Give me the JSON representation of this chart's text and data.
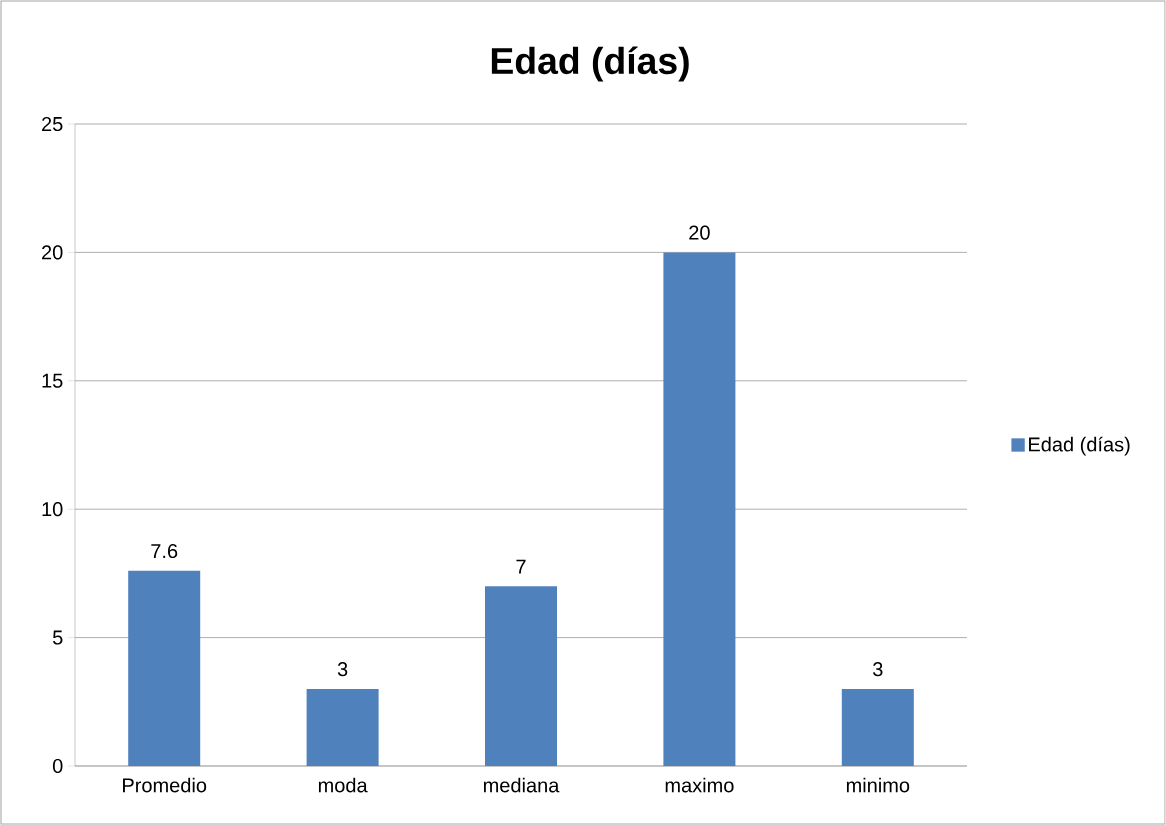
{
  "chart_data": {
    "type": "bar",
    "title": "Edad (días)",
    "categories": [
      "Promedio",
      "moda",
      "mediana",
      "maximo",
      "minimo"
    ],
    "series": [
      {
        "name": "Edad (días)",
        "color": "#4f81bd",
        "values": [
          7.6,
          3,
          7,
          20,
          3
        ]
      }
    ],
    "ylim": [
      0,
      25
    ],
    "yticks": [
      0,
      5,
      10,
      15,
      20,
      25
    ],
    "grid": "y",
    "legend": "right",
    "data_labels": true
  }
}
